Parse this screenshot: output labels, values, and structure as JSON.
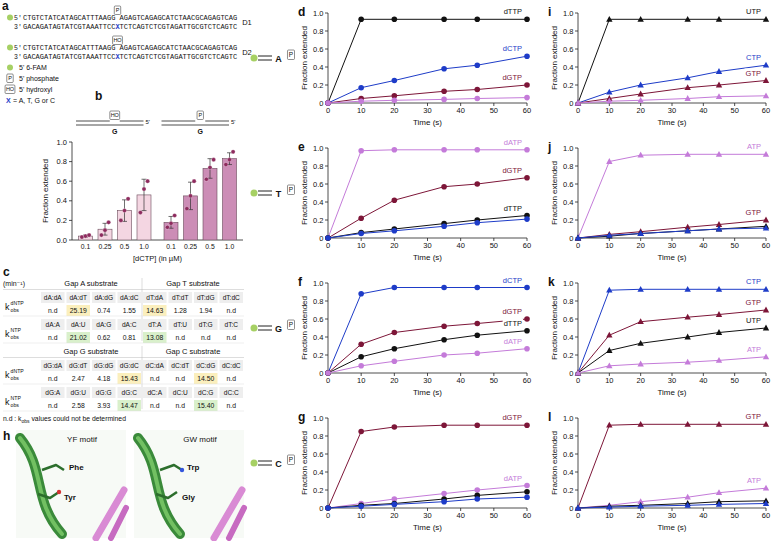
{
  "panel_a": {
    "letter": "a",
    "duplexes": [
      {
        "label": "D1",
        "top_end": "5'",
        "top_left": "CTGTCTATCATAGCATTTAAGG",
        "modification": "P",
        "top_right": "AGAGTCAGAGCATCTAACGCAGAGTCAG",
        "bottom_end": "3'",
        "bottom_left": "GACAGATAGTATCGTAAATTCC",
        "variable": "X",
        "bottom_right": "TCTCAGTCTCGTAGATTGCGTCTCAGTC"
      },
      {
        "label": "D2",
        "top_end": "5'",
        "top_left": "CTGTCTATCATAGCATTTAAGG",
        "modification": "HO",
        "top_right": "AGAGTCAGAGCATCTAACGCAGAGTCAG",
        "bottom_end": "3'",
        "bottom_left": "GACAGATAGTATCGTAAATTCC",
        "variable": "X",
        "bottom_right": "TCTCAGTCTCGTAGATTGCGTCTCAGTC"
      }
    ],
    "legend": [
      {
        "color": "#a6d064",
        "text": "5' 6-FAM"
      },
      {
        "box": "P",
        "text": "5' phosphate"
      },
      {
        "box": "HO",
        "text": "5' hydroxyl"
      },
      {
        "letter": "X",
        "color": "#1e3cc8",
        "text": "= A, T, G or C"
      }
    ]
  },
  "chart_data": [
    {
      "type": "bar",
      "letter": "b",
      "y_label": "Fraction extended",
      "x_label": "[dCTP] (in µM)",
      "categories": [
        "0.1",
        "0.25",
        "0.5",
        "1.0"
      ],
      "ylim": [
        0,
        1
      ],
      "yticks": [
        {
          "value": 0,
          "label": "0.0"
        },
        0.2,
        0.4,
        0.6,
        0.8,
        {
          "value": 1,
          "label": "1.0"
        }
      ],
      "template_base": "G",
      "end_label": "5'",
      "series": [
        {
          "name": "HO",
          "color": "#f4d6e2",
          "values": [
            0.04,
            0.11,
            0.3,
            0.46
          ],
          "errors": [
            0.01,
            0.06,
            0.11,
            0.16
          ],
          "points": [
            [
              0.03,
              0.04,
              0.05
            ],
            [
              0.05,
              0.1,
              0.18
            ],
            [
              0.2,
              0.3,
              0.42
            ],
            [
              0.28,
              0.52,
              0.6
            ]
          ]
        },
        {
          "name": "P",
          "color": "#cc8db6",
          "values": [
            0.18,
            0.45,
            0.73,
            0.83
          ],
          "errors": [
            0.06,
            0.14,
            0.1,
            0.06
          ],
          "points": [
            [
              0.13,
              0.17,
              0.25
            ],
            [
              0.32,
              0.45,
              0.6
            ],
            [
              0.62,
              0.74,
              0.82
            ],
            [
              0.77,
              0.82,
              0.9
            ]
          ]
        }
      ]
    },
    {
      "type": "line",
      "letter": "d",
      "template_base": "A",
      "modification": "P",
      "marker": "circle",
      "x_label": "Time (s)",
      "y_label": "Fraction extended",
      "x": [
        0,
        10,
        20,
        35,
        45,
        60
      ],
      "xlim": [
        0,
        60
      ],
      "xticks": [
        0,
        10,
        20,
        30,
        40,
        50,
        60
      ],
      "ylim": [
        0,
        1
      ],
      "yticks": [
        0,
        0.2,
        0.4,
        0.6,
        0.8,
        {
          "value": 1,
          "label": "1.0"
        }
      ],
      "series": [
        {
          "name": "dTTP",
          "color": "#111111",
          "values": [
            0,
            0.93,
            0.93,
            0.93,
            0.93,
            0.93
          ]
        },
        {
          "name": "dCTP",
          "color": "#1e3cc8",
          "values": [
            0,
            0.17,
            0.25,
            0.38,
            0.42,
            0.52
          ]
        },
        {
          "name": "dGTP",
          "color": "#7d1638",
          "values": [
            0,
            0.05,
            0.08,
            0.13,
            0.15,
            0.2
          ]
        },
        {
          "color": "#c47bd9",
          "values": [
            0,
            0.02,
            0.03,
            0.04,
            0.05,
            0.06
          ]
        }
      ]
    },
    {
      "type": "line",
      "letter": "e",
      "template_base": "T",
      "modification": "P",
      "marker": "circle",
      "x_label": "Time (s)",
      "y_label": "Fraction extended",
      "x": [
        0,
        10,
        20,
        35,
        45,
        60
      ],
      "xlim": [
        0,
        60
      ],
      "xticks": [
        0,
        10,
        20,
        30,
        40,
        50,
        60
      ],
      "ylim": [
        0,
        1
      ],
      "yticks": [
        0,
        0.2,
        0.4,
        0.6,
        0.8,
        {
          "value": 1,
          "label": "1.0"
        }
      ],
      "series": [
        {
          "name": "dATP",
          "color": "#c47bd9",
          "values": [
            0,
            0.97,
            0.98,
            0.98,
            0.98,
            0.98
          ]
        },
        {
          "name": "dGTP",
          "color": "#7d1638",
          "values": [
            0,
            0.22,
            0.42,
            0.57,
            0.6,
            0.67
          ]
        },
        {
          "name": "dTTP",
          "color": "#111111",
          "values": [
            0,
            0.06,
            0.1,
            0.16,
            0.2,
            0.25
          ]
        },
        {
          "color": "#1e3cc8",
          "values": [
            0,
            0.05,
            0.08,
            0.13,
            0.17,
            0.21
          ]
        }
      ]
    },
    {
      "type": "line",
      "letter": "f",
      "template_base": "G",
      "modification": "P",
      "marker": "circle",
      "x_label": "Time (s)",
      "y_label": "Fraction extended",
      "x": [
        0,
        10,
        20,
        35,
        45,
        60
      ],
      "xlim": [
        0,
        60
      ],
      "xticks": [
        0,
        10,
        20,
        30,
        40,
        50,
        60
      ],
      "ylim": [
        0,
        1
      ],
      "yticks": [
        0,
        0.2,
        0.4,
        0.6,
        0.8,
        {
          "value": 1,
          "label": "1.0"
        }
      ],
      "series": [
        {
          "name": "dCTP",
          "color": "#1e3cc8",
          "values": [
            0,
            0.88,
            0.95,
            0.95,
            0.95,
            0.95
          ]
        },
        {
          "name": "dGTP",
          "color": "#7d1638",
          "values": [
            0,
            0.32,
            0.45,
            0.52,
            0.55,
            0.6
          ]
        },
        {
          "name": "dTTP",
          "color": "#111111",
          "values": [
            0,
            0.18,
            0.27,
            0.37,
            0.42,
            0.47
          ]
        },
        {
          "name": "dATP",
          "color": "#c47bd9",
          "values": [
            0,
            0.08,
            0.13,
            0.2,
            0.22,
            0.27
          ]
        }
      ]
    },
    {
      "type": "line",
      "letter": "g",
      "template_base": "C",
      "modification": "P",
      "marker": "circle",
      "x_label": "Time (s)",
      "y_label": "Fraction extended",
      "x": [
        0,
        10,
        20,
        35,
        45,
        60
      ],
      "xlim": [
        0,
        60
      ],
      "xticks": [
        0,
        10,
        20,
        30,
        40,
        50,
        60
      ],
      "ylim": [
        0,
        1
      ],
      "yticks": [
        0,
        0.2,
        0.4,
        0.6,
        0.8,
        {
          "value": 1,
          "label": "1.0"
        }
      ],
      "series": [
        {
          "name": "dGTP",
          "color": "#7d1638",
          "values": [
            0,
            0.85,
            0.9,
            0.92,
            0.92,
            0.92
          ]
        },
        {
          "name": "dATP",
          "color": "#c47bd9",
          "values": [
            0,
            0.05,
            0.1,
            0.16,
            0.2,
            0.25
          ]
        },
        {
          "color": "#111111",
          "values": [
            0,
            0.03,
            0.05,
            0.1,
            0.14,
            0.18
          ]
        },
        {
          "color": "#1e3cc8",
          "values": [
            0,
            0.02,
            0.04,
            0.07,
            0.1,
            0.12
          ]
        }
      ]
    },
    {
      "type": "line",
      "letter": "i",
      "marker": "triangle",
      "x_label": "Time (s)",
      "y_label": "Fraction extended",
      "x": [
        0,
        10,
        20,
        35,
        45,
        60
      ],
      "xlim": [
        0,
        60
      ],
      "xticks": [
        0,
        10,
        20,
        30,
        40,
        50,
        60
      ],
      "ylim": [
        0,
        1
      ],
      "yticks": [
        0,
        0.2,
        0.4,
        0.6,
        0.8,
        {
          "value": 1,
          "label": "1.0"
        }
      ],
      "series": [
        {
          "name": "UTP",
          "color": "#111111",
          "values": [
            0,
            0.93,
            0.93,
            0.93,
            0.93,
            0.93
          ]
        },
        {
          "name": "CTP",
          "color": "#1e3cc8",
          "values": [
            0,
            0.12,
            0.2,
            0.28,
            0.35,
            0.42
          ]
        },
        {
          "name": "GTP",
          "color": "#7d1638",
          "values": [
            0,
            0.05,
            0.1,
            0.17,
            0.2,
            0.25
          ]
        },
        {
          "color": "#c47bd9",
          "values": [
            0,
            0.02,
            0.03,
            0.05,
            0.07,
            0.08
          ]
        }
      ]
    },
    {
      "type": "line",
      "letter": "j",
      "marker": "triangle",
      "x_label": "Time (s)",
      "y_label": "Fraction extended",
      "x": [
        0,
        10,
        20,
        35,
        45,
        60
      ],
      "xlim": [
        0,
        60
      ],
      "xticks": [
        0,
        10,
        20,
        30,
        40,
        50,
        60
      ],
      "ylim": [
        0,
        1
      ],
      "yticks": [
        0,
        0.2,
        0.4,
        0.6,
        0.8,
        {
          "value": 1,
          "label": "1.0"
        }
      ],
      "series": [
        {
          "name": "ATP",
          "color": "#c47bd9",
          "values": [
            0,
            0.85,
            0.92,
            0.93,
            0.93,
            0.93
          ]
        },
        {
          "name": "GTP",
          "color": "#7d1638",
          "values": [
            0,
            0.04,
            0.07,
            0.12,
            0.15,
            0.2
          ]
        },
        {
          "color": "#111111",
          "values": [
            0,
            0.02,
            0.05,
            0.08,
            0.1,
            0.13
          ]
        },
        {
          "color": "#1e3cc8",
          "values": [
            0,
            0.03,
            0.05,
            0.08,
            0.1,
            0.11
          ]
        }
      ]
    },
    {
      "type": "line",
      "letter": "k",
      "marker": "triangle",
      "x_label": "Time (s)",
      "y_label": "Fraction extended",
      "x": [
        0,
        10,
        20,
        35,
        45,
        60
      ],
      "xlim": [
        0,
        60
      ],
      "xticks": [
        0,
        10,
        20,
        30,
        40,
        50,
        60
      ],
      "ylim": [
        0,
        1
      ],
      "yticks": [
        0,
        0.2,
        0.4,
        0.6,
        0.8,
        {
          "value": 1,
          "label": "1.0"
        }
      ],
      "series": [
        {
          "name": "CTP",
          "color": "#1e3cc8",
          "values": [
            0,
            0.92,
            0.93,
            0.93,
            0.93,
            0.93
          ]
        },
        {
          "name": "GTP",
          "color": "#7d1638",
          "values": [
            0,
            0.42,
            0.57,
            0.62,
            0.65,
            0.7
          ]
        },
        {
          "name": "UTP",
          "color": "#111111",
          "values": [
            0,
            0.25,
            0.33,
            0.4,
            0.45,
            0.5
          ]
        },
        {
          "name": "ATP",
          "color": "#c47bd9",
          "values": [
            0,
            0.08,
            0.1,
            0.12,
            0.14,
            0.18
          ]
        }
      ]
    },
    {
      "type": "line",
      "letter": "l",
      "marker": "triangle",
      "x_label": "Time (s)",
      "y_label": "Fraction extended",
      "x": [
        0,
        10,
        20,
        35,
        45,
        60
      ],
      "xlim": [
        0,
        60
      ],
      "xticks": [
        0,
        10,
        20,
        30,
        40,
        50,
        60
      ],
      "ylim": [
        0,
        1
      ],
      "yticks": [
        0,
        0.2,
        0.4,
        0.6,
        0.8,
        {
          "value": 1,
          "label": "1.0"
        }
      ],
      "series": [
        {
          "name": "GTP",
          "color": "#7d1638",
          "values": [
            0,
            0.92,
            0.93,
            0.93,
            0.93,
            0.93
          ]
        },
        {
          "name": "ATP",
          "color": "#c47bd9",
          "values": [
            0,
            0.03,
            0.07,
            0.12,
            0.17,
            0.22
          ]
        },
        {
          "color": "#111111",
          "values": [
            0,
            0.02,
            0.03,
            0.05,
            0.07,
            0.08
          ]
        },
        {
          "color": "#1e3cc8",
          "values": [
            0,
            0.01,
            0.02,
            0.03,
            0.04,
            0.05
          ]
        }
      ]
    }
  ],
  "panel_c": {
    "letter": "c",
    "unit": "(min⁻¹)",
    "blocks": [
      {
        "substrates": [
          "Gap A substrate",
          "Gap T substrate"
        ],
        "rows": [
          {
            "head": {
              "main": "k",
              "sub": "obs",
              "sup": "dNTP"
            },
            "labels": [
              "dA:dA",
              "dA:dT",
              "dA:dG",
              "dA:dC",
              "dT:dA",
              "dT:dT",
              "dT:dG",
              "dT:dC"
            ],
            "values": [
              "n.d",
              "25.19",
              "0.74",
              "1.55",
              "14.63",
              "1.28",
              "1.94",
              "n.d"
            ]
          },
          {
            "head": {
              "main": "k",
              "sub": "obs",
              "sup": "NTP"
            },
            "labels": [
              "dA:A",
              "dA:U",
              "dA:G",
              "dA:C",
              "dT:A",
              "dT:U",
              "dT:G",
              "dT:C"
            ],
            "values": [
              "n.d",
              "21.02",
              "0.62",
              "0.81",
              "13.08",
              "n.d",
              "n.d",
              "n.d"
            ]
          }
        ]
      },
      {
        "substrates": [
          "Gap G substrate",
          "Gap C substrate"
        ],
        "rows": [
          {
            "head": {
              "main": "k",
              "sub": "obs",
              "sup": "dNTP"
            },
            "labels": [
              "dG:dA",
              "dG:dT",
              "dG:dG",
              "dG:dC",
              "dC:dA",
              "dC:dT",
              "dC:dG",
              "dC:dC"
            ],
            "values": [
              "n.d",
              "2.47",
              "4.18",
              "15.43",
              "n.d",
              "n.d",
              "14.50",
              "n.d"
            ]
          },
          {
            "head": {
              "main": "k",
              "sub": "obs",
              "sup": "NTP"
            },
            "labels": [
              "dG:A",
              "dG:U",
              "dG:G",
              "dG:C",
              "dC:A",
              "dC:U",
              "dC:G",
              "dC:C"
            ],
            "values": [
              "n.d",
              "2.58",
              "3.93",
              "14.47",
              "n.d",
              "n.d",
              "15.40",
              "n.d"
            ]
          }
        ]
      }
    ],
    "note": {
      "before": "n.d : k",
      "sub": "obs",
      "after": " values could not be determined"
    }
  },
  "panel_h": {
    "letter": "h",
    "views": [
      {
        "title": "YF motif",
        "residues": [
          "Tyr",
          "Phe"
        ]
      },
      {
        "title": "GW motif",
        "residues": [
          "Gly",
          "Trp"
        ]
      }
    ]
  }
}
